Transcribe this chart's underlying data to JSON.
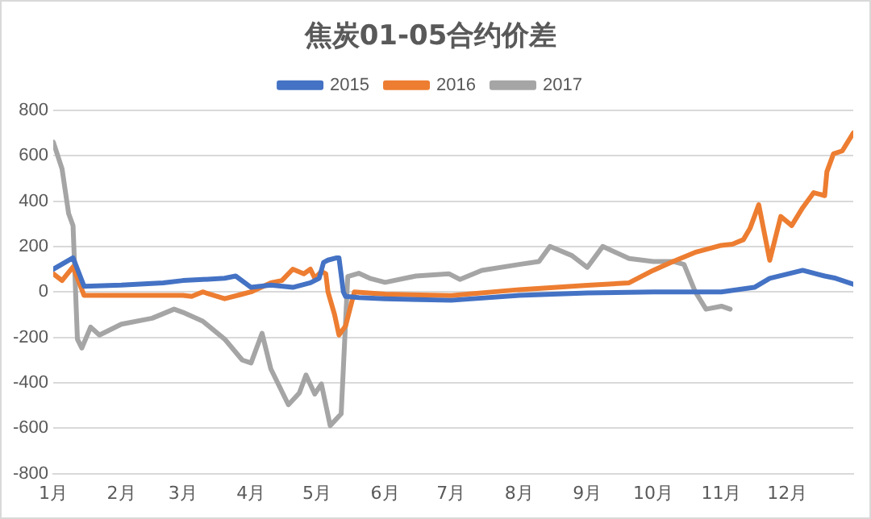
{
  "chart_data": {
    "type": "line",
    "title": "焦炭01-05合约价差",
    "legend": "top",
    "grid": "y",
    "marker": "none",
    "line_style": "solid",
    "xlim": [
      "--01-01",
      "--12-31"
    ],
    "xticks": [
      {
        "value": "--01-01",
        "label": "1月"
      },
      {
        "value": "--02-01",
        "label": "2月"
      },
      {
        "value": "--03-01",
        "label": "3月"
      },
      {
        "value": "--04-01",
        "label": "4月"
      },
      {
        "value": "--05-01",
        "label": "5月"
      },
      {
        "value": "--06-01",
        "label": "6月"
      },
      {
        "value": "--07-01",
        "label": "7月"
      },
      {
        "value": "--08-01",
        "label": "8月"
      },
      {
        "value": "--09-01",
        "label": "9月"
      },
      {
        "value": "--10-01",
        "label": "10月"
      },
      {
        "value": "--11-01",
        "label": "11月"
      },
      {
        "value": "--12-01",
        "label": "12月"
      }
    ],
    "ylim": [
      -800,
      800
    ],
    "yticks": [
      -800,
      -600,
      -400,
      -200,
      0,
      200,
      400,
      600,
      800
    ],
    "series": [
      {
        "name": "2015",
        "color": "#4472c4",
        "x": [
          "--01-01",
          "--01-10",
          "--01-15",
          "--02-01",
          "--02-20",
          "--03-01",
          "--03-20",
          "--03-25",
          "--04-01",
          "--04-10",
          "--04-20",
          "--04-28",
          "--05-02",
          "--05-04",
          "--05-06",
          "--05-10",
          "--05-11",
          "--05-13",
          "--05-14",
          "--05-20",
          "--06-01",
          "--07-01",
          "--08-01",
          "--09-01",
          "--10-01",
          "--11-01",
          "--11-16",
          "--11-23",
          "--12-08",
          "--12-18",
          "--12-23",
          "--12-31"
        ],
        "values": [
          100,
          150,
          25,
          30,
          40,
          50,
          60,
          70,
          20,
          30,
          20,
          40,
          60,
          130,
          140,
          150,
          150,
          0,
          -20,
          -25,
          -30,
          -37,
          -15,
          -5,
          0,
          0,
          20,
          60,
          95,
          70,
          60,
          34
        ]
      },
      {
        "name": "2016",
        "color": "#ed7d31",
        "x": [
          "--01-01",
          "--01-05",
          "--01-10",
          "--01-15",
          "--02-01",
          "--03-01",
          "--03-05",
          "--03-10",
          "--03-20",
          "--03-28",
          "--04-01",
          "--04-10",
          "--04-15",
          "--04-20",
          "--04-25",
          "--04-28",
          "--04-30",
          "--05-03",
          "--05-05",
          "--05-06",
          "--05-09",
          "--05-11",
          "--05-14",
          "--05-18",
          "--06-01",
          "--07-01",
          "--08-01",
          "--09-01",
          "--09-20",
          "--10-01",
          "--10-10",
          "--10-20",
          "--11-01",
          "--11-06",
          "--11-11",
          "--11-14",
          "--11-18",
          "--11-23",
          "--11-28",
          "--12-03",
          "--12-08",
          "--12-13",
          "--12-18",
          "--12-19",
          "--12-22",
          "--12-26",
          "--12-31"
        ],
        "values": [
          80,
          50,
          110,
          -15,
          -15,
          -15,
          -20,
          0,
          -30,
          -10,
          0,
          40,
          50,
          100,
          80,
          100,
          60,
          90,
          80,
          0,
          -100,
          -190,
          -150,
          0,
          -10,
          -16,
          10,
          29,
          40,
          95,
          134,
          174,
          205,
          210,
          230,
          279,
          384,
          139,
          332,
          292,
          371,
          437,
          424,
          529,
          608,
          621,
          700
        ]
      },
      {
        "name": "2017",
        "color": "#a5a5a5",
        "x": [
          "--01-01",
          "--01-05",
          "--01-08",
          "--01-10",
          "--01-12",
          "--01-14",
          "--01-18",
          "--01-22",
          "--02-01",
          "--02-15",
          "--02-25",
          "--03-01",
          "--03-10",
          "--03-20",
          "--03-28",
          "--04-01",
          "--04-06",
          "--04-10",
          "--04-18",
          "--04-23",
          "--04-26",
          "--04-30",
          "--05-03",
          "--05-07",
          "--05-12",
          "--05-15",
          "--05-20",
          "--05-25",
          "--06-01",
          "--06-15",
          "--06-30",
          "--07-05",
          "--07-15",
          "--08-01",
          "--08-10",
          "--08-15",
          "--08-25",
          "--09-01",
          "--09-08",
          "--09-20",
          "--10-01",
          "--10-10",
          "--10-15",
          "--10-20",
          "--10-25",
          "--11-01",
          "--11-05"
        ],
        "values": [
          660,
          542,
          345,
          292,
          -208,
          -247,
          -155,
          -190,
          -142,
          -116,
          -76,
          -90,
          -129,
          -208,
          -300,
          -313,
          -182,
          -339,
          -497,
          -445,
          -366,
          -450,
          -405,
          -589,
          -537,
          68,
          82,
          60,
          42,
          70,
          80,
          55,
          95,
          121,
          134,
          200,
          160,
          108,
          200,
          147,
          134,
          134,
          121,
          3,
          -76,
          -63,
          -76
        ]
      }
    ]
  }
}
